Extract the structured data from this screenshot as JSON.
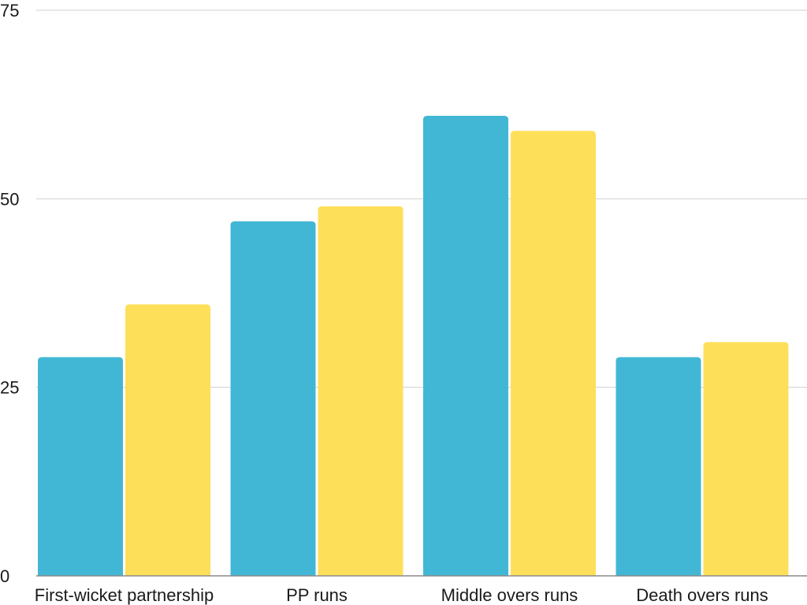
{
  "chart_data": {
    "type": "bar",
    "title": "",
    "xlabel": "",
    "ylabel": "",
    "categories": [
      "First-wicket partnership",
      "PP runs",
      "Middle overs runs",
      "Death overs runs"
    ],
    "series": [
      {
        "color": "#42b7d5",
        "values": [
          29,
          47,
          61,
          29
        ]
      },
      {
        "color": "#fddf5a",
        "values": [
          36,
          49,
          59,
          31
        ]
      }
    ],
    "ylim": [
      0,
      75
    ],
    "yticks": [
      0,
      25,
      50,
      75
    ],
    "grid": true,
    "legend": "none"
  }
}
